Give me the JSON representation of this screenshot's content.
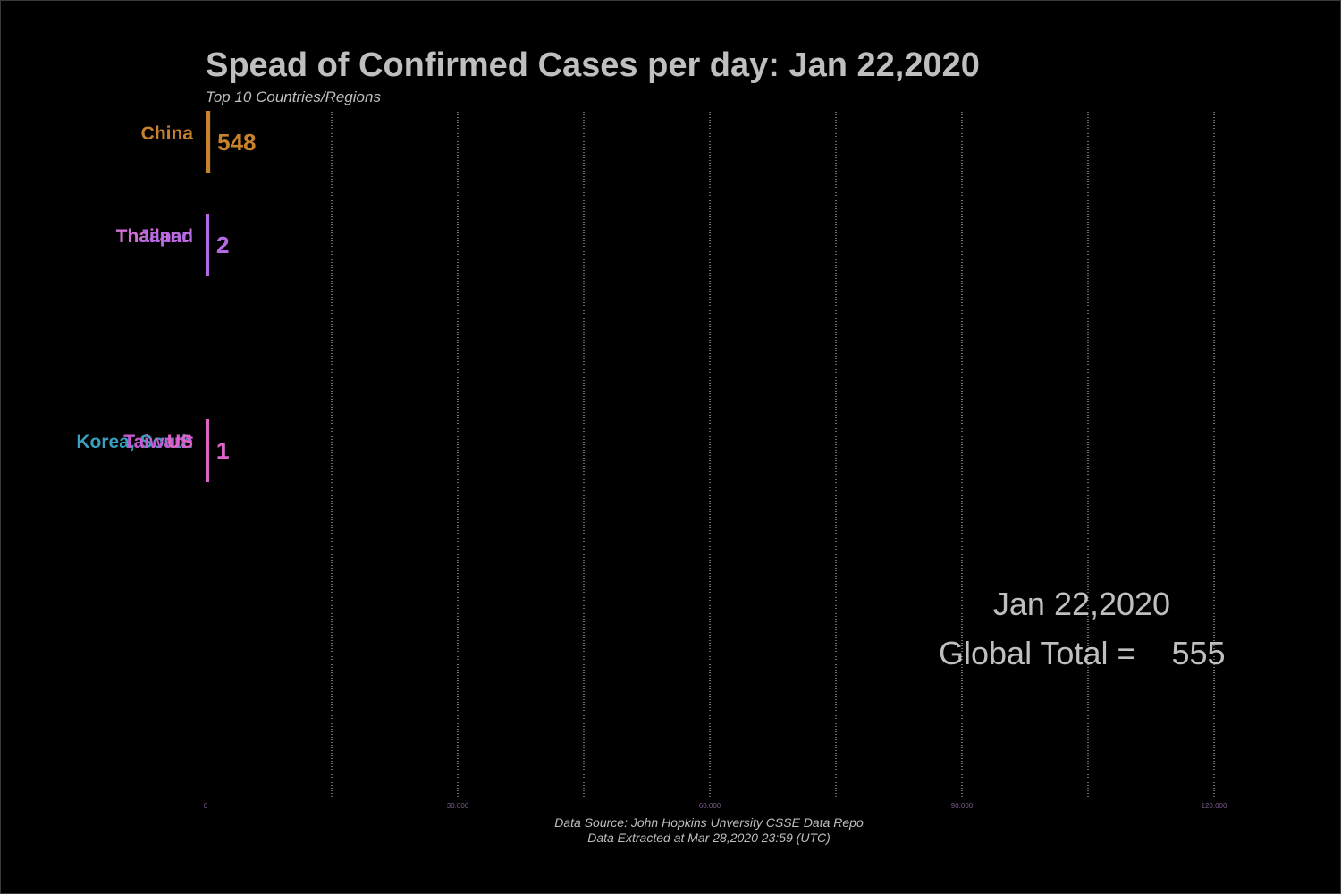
{
  "title": "Spead of Confirmed Cases per day: Jan 22,2020",
  "subtitle": "Top 10 Countries/Regions",
  "date_display": "Jan 22,2020",
  "global_total_label": "Global Total =",
  "global_total_value": "555",
  "source_line1": "Data Source: John Hopkins Unversity CSSE Data Repo",
  "source_line2": "Data Extracted at Mar 28,2020 23:59 (UTC)",
  "colors": {
    "background": "#000000",
    "text": "#bfbfbf",
    "China": "#c8822c",
    "Thailand": "#d06fd6",
    "Japan": "#b46ae6",
    "Korea, South": "#3a9ebd",
    "Taiwan*": "#c45bd0",
    "US": "#e063c8"
  },
  "chart_data": {
    "type": "bar",
    "orientation": "horizontal",
    "categories": [
      "China",
      "Thailand",
      "Japan",
      "Korea, South",
      "Taiwan*",
      "US"
    ],
    "values": [
      548,
      2,
      2,
      1,
      1,
      1
    ],
    "value_labels": [
      "548",
      "2",
      "2",
      "1",
      "1",
      "1"
    ],
    "rank_slots": [
      0,
      1,
      1,
      3,
      3,
      3
    ],
    "xlim": [
      0,
      120000
    ],
    "xticks": [
      0,
      30000,
      60000,
      90000,
      120000
    ],
    "xtick_labels": [
      "0",
      "30.000",
      "60.000",
      "90.000",
      "120.000"
    ],
    "grid": true,
    "legend": "none"
  }
}
